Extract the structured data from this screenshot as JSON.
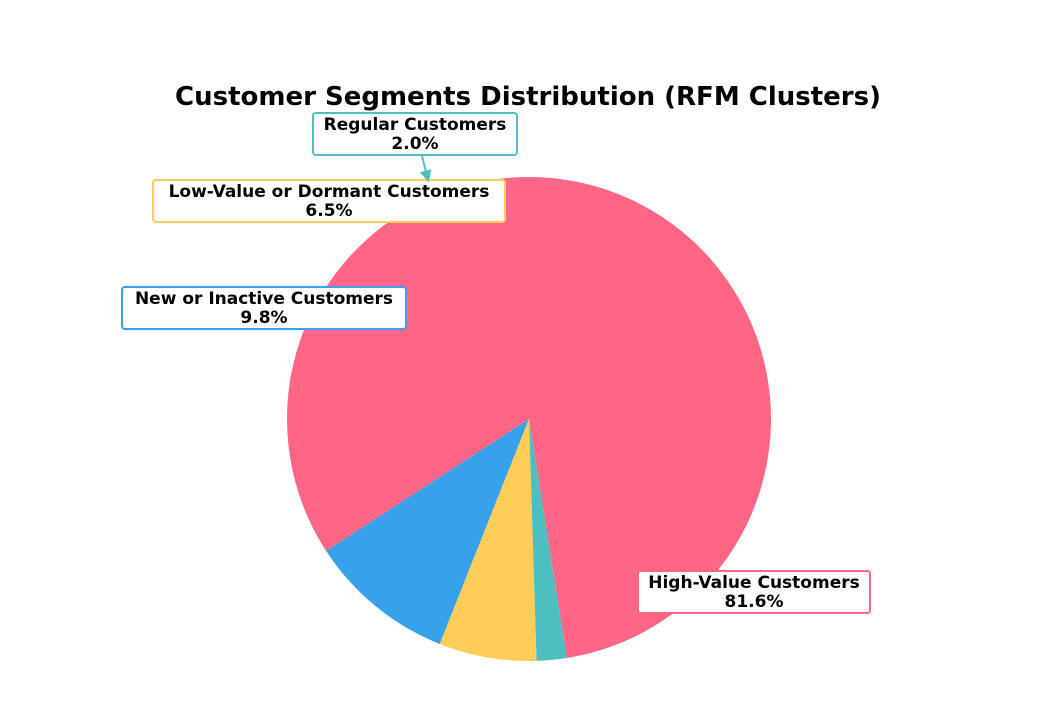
{
  "chart_data": {
    "type": "pie",
    "title": "Customer Segments Distribution (RFM Clusters)",
    "slices": [
      {
        "label": "High-Value Customers",
        "value": 81.6,
        "value_label": "81.6%",
        "color": "#ff6584"
      },
      {
        "label": "New or Inactive Customers",
        "value": 9.8,
        "value_label": "9.8%",
        "color": "#38a1eb"
      },
      {
        "label": "Low-Value or Dormant Customers",
        "value": 6.5,
        "value_label": "6.5%",
        "color": "#ffcd57"
      },
      {
        "label": "Regular Customers",
        "value": 2.0,
        "value_label": "2.0%",
        "color": "#4ebfc0"
      }
    ],
    "legend": "none",
    "grid": false
  }
}
